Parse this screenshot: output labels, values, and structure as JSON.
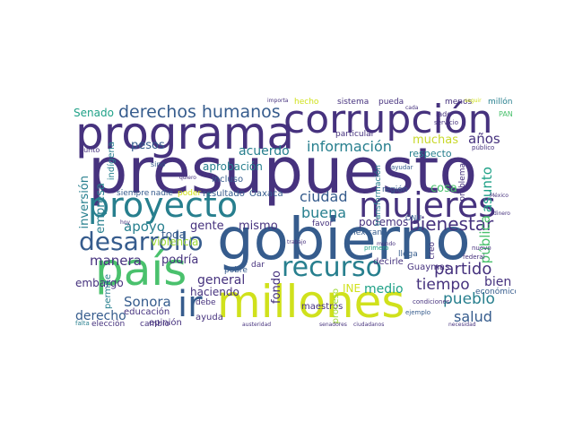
{
  "colors": {
    "dark_purple": "#46327e",
    "blue": "#365c8d",
    "teal": "#277f8e",
    "green": "#1fa187",
    "light_green": "#4ac16d",
    "yellow_green": "#a0da39",
    "yellow": "#d0e11c",
    "lime": "#c8d82a"
  },
  "words": {
    "presupuesto": "presupuesto",
    "gobierno": "gobierno",
    "programa": "programa",
    "corrupcion": "corrupción",
    "millones": "millones",
    "pais": "país",
    "proyecto": "proyecto",
    "mujeres": "mujeres",
    "recurso": "recurso",
    "desarrollo": "desarrollo",
    "derechos_humanos": "derechos humanos",
    "ir": "ir",
    "bienestar": "bienestar",
    "informacion": "información",
    "partido": "partido",
    "tiempo": "tiempo",
    "pueblo": "pueblo",
    "salud": "salud",
    "ciudad": "ciudad",
    "buena": "buena",
    "apoyo": "apoyo",
    "manera": "manera",
    "podria": "podría",
    "sonora": "Sonora",
    "derecho": "derecho",
    "general": "general",
    "haciendo": "haciendo",
    "acuerdo": "acuerdo",
    "pesos": "pesos",
    "senado": "Senado",
    "muchas": "muchas",
    "anos": "años",
    "asunto": "asunto",
    "publica": "pública",
    "bien": "bien",
    "fondo": "fondo",
    "medio": "medio",
    "ine": "INE",
    "cosa": "cosa",
    "gente": "gente",
    "mismo": "mismo",
    "podemos": "podemos",
    "toda": "toda",
    "embargo": "embargo",
    "inversion": "inversión",
    "empresa": "empresa",
    "educacion": "educación",
    "opinion": "opinión",
    "ayuda": "ayuda",
    "aprobacion": "aprobación",
    "incluso": "incluso",
    "resultado": "resultado",
    "oaxaca": "Oaxaca",
    "siempre": "siempre",
    "nadie": "nadie",
    "poder": "poder",
    "violencia": "violencia",
    "respecto": "respecto",
    "region": "región",
    "guaymas": "Guaymas",
    "mexicano": "mexicano",
    "llega": "llega",
    "decirle": "decirle",
    "maestros": "maestros",
    "proceso": "proceso",
    "economico": "económico",
    "indigena": "indígena",
    "permite": "permite",
    "pobre": "pobre",
    "dar": "dar",
    "creo": "creo",
    "eleccion": "elección",
    "cambio": "cambio",
    "debe": "debe",
    "favor": "favor",
    "onu": "ONU",
    "transformacion": "transformación",
    "problema": "problema",
    "hecho": "hecho",
    "sistema": "sistema",
    "pueda": "pueda",
    "menos": "menos",
    "millon": "millón",
    "particular": "particular",
    "lado": "lado",
    "servicio": "servicio",
    "pan": "PAN",
    "sino": "sino",
    "punto": "punto",
    "pablo": "Pablo",
    "primero": "primero",
    "federal": "federal",
    "ayudar": "ayudar",
    "publico": "público",
    "ejemplo": "ejemplo",
    "falta": "falta",
    "condiciones": "condiciones",
    "nuevo": "nuevo",
    "cada": "cada",
    "importa": "importa",
    "seguir": "seguir",
    "senadores": "senadores",
    "ciudadanos": "ciudadanos",
    "necesidad": "necesidad",
    "austeridad": "austeridad",
    "hoy": "hoy",
    "quiero": "quiero",
    "mundo": "mundo",
    "dinero": "dinero",
    "mexico": "México",
    "trabajo": "trabajo"
  }
}
